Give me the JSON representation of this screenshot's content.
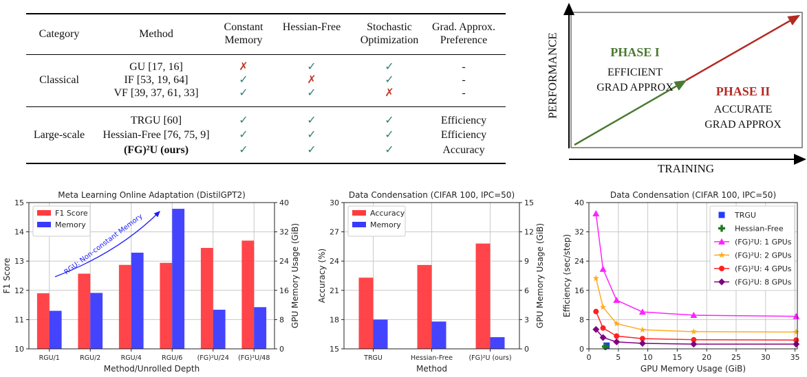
{
  "table": {
    "headers": [
      "Category",
      "Method",
      "Constant Memory",
      "Hessian-Free",
      "Stochastic Optimization",
      "Grad. Approx. Preference"
    ],
    "groups": [
      {
        "category": "Classical",
        "rows": [
          {
            "method": "GU [17, 16]",
            "cells": [
              "✗",
              "✓",
              "✓",
              "-"
            ]
          },
          {
            "method": "IF [53, 19, 64]",
            "cells": [
              "✓",
              "✗",
              "✓",
              "-"
            ]
          },
          {
            "method": "VF [39, 37, 61, 33]",
            "cells": [
              "✓",
              "✓",
              "✗",
              "-"
            ]
          }
        ]
      },
      {
        "category": "Large-scale",
        "rows": [
          {
            "method": "TRGU [60]",
            "cells": [
              "✓",
              "✓",
              "✓",
              "Efficiency"
            ]
          },
          {
            "method": "Hessian-Free [76, 75, 9]",
            "cells": [
              "✓",
              "✓",
              "✓",
              "Efficiency"
            ]
          },
          {
            "method": "(FG)²U (ours)",
            "cells": [
              "✓",
              "✓",
              "✓",
              "Accuracy"
            ]
          }
        ]
      }
    ],
    "check_color": "#2f7f74",
    "cross_color": "#c0392b"
  },
  "phase_diagram": {
    "y_axis": "PERFORMANCE",
    "x_axis": "TRAINING",
    "phase1_title": "PHASE I",
    "phase1_line1": "EFFICIENT",
    "phase1_line2": "GRAD APPROX",
    "phase2_title": "PHASE II",
    "phase2_line1": "ACCURATE",
    "phase2_line2": "GRAD APPROX",
    "phase1_color": "#4a7a32",
    "phase2_color": "#b22a22"
  },
  "chart_data": [
    {
      "type": "bar",
      "title": "Meta Learning Online Adaptation (DistilGPT2)",
      "xlabel": "Method/Unrolled Depth",
      "ylabel": "F1 Score",
      "y2label": "GPU Memory Usage (GiB)",
      "categories": [
        "RGU/1",
        "RGU/2",
        "RGU/4",
        "RGU/6",
        "(FG)²U/24",
        "(FG)²U/48"
      ],
      "series": [
        {
          "name": "F1 Score",
          "axis": "left",
          "color": "#ff3b3f",
          "values": [
            11.9,
            12.57,
            12.87,
            12.94,
            13.45,
            13.7
          ]
        },
        {
          "name": "Memory",
          "axis": "right",
          "color": "#3a3aff",
          "values": [
            10.4,
            15.3,
            26.3,
            38.3,
            10.7,
            11.4
          ]
        }
      ],
      "ylim": [
        10,
        15
      ],
      "yticks": [
        10,
        11,
        12,
        13,
        14,
        15
      ],
      "y2lim": [
        0,
        40
      ],
      "y2ticks": [
        0,
        8,
        16,
        24,
        32,
        40
      ],
      "annotation": "RGU: Non-constant Memory",
      "grid": true,
      "legend": "top-left"
    },
    {
      "type": "bar",
      "title": "Data Condensation (CIFAR 100, IPC=50)",
      "xlabel": "Method",
      "ylabel": "Accuracy (%)",
      "y2label": "GPU Memory Usage (GiB)",
      "categories": [
        "TRGU",
        "Hessian-Free",
        "(FG)²U (ours)"
      ],
      "series": [
        {
          "name": "Accuracy",
          "axis": "left",
          "color": "#ff3b3f",
          "values": [
            22.3,
            23.6,
            25.8
          ]
        },
        {
          "name": "Memory",
          "axis": "right",
          "color": "#3a3aff",
          "values": [
            3.0,
            2.8,
            1.2
          ]
        }
      ],
      "ylim": [
        15,
        30
      ],
      "yticks": [
        15,
        18,
        21,
        24,
        27,
        30
      ],
      "y2lim": [
        0,
        15
      ],
      "y2ticks": [
        0,
        3,
        6,
        9,
        12,
        15
      ],
      "grid": true,
      "legend": "top-left"
    },
    {
      "type": "line",
      "title": "Data Condensation (CIFAR 100, IPC=50)",
      "xlabel": "GPU Memory Usage (GiB)",
      "ylabel": "Efficiency (sec/step)",
      "xlim": [
        0,
        35.4
      ],
      "xticks": [
        0,
        5,
        10,
        15,
        20,
        25,
        30,
        35
      ],
      "ylim": [
        0,
        40
      ],
      "yticks": [
        0,
        8,
        16,
        24,
        32,
        40
      ],
      "points": [
        {
          "name": "TRGU",
          "color": "#1f3cff",
          "marker": "square",
          "x": 3.0,
          "y": 0.9
        },
        {
          "name": "Hessian-Free",
          "color": "#1e7a1e",
          "marker": "plus",
          "x": 2.8,
          "y": 0.6
        }
      ],
      "series": [
        {
          "name": "(FG)²U: 1 GPUs",
          "color": "#ff22ff",
          "marker": "triangle",
          "x": [
            1.2,
            2.4,
            4.7,
            9.1,
            17.8,
            35.2
          ],
          "y": [
            37,
            21.8,
            13.3,
            10.1,
            9.2,
            8.9
          ]
        },
        {
          "name": "(FG)²U: 2 GPUs",
          "color": "#ffaa22",
          "marker": "star",
          "x": [
            1.2,
            2.4,
            4.7,
            9.1,
            17.8,
            35.2
          ],
          "y": [
            19.3,
            11.4,
            6.9,
            5.2,
            4.7,
            4.6
          ]
        },
        {
          "name": "(FG)²U: 4 GPUs",
          "color": "#ff2020",
          "marker": "circle",
          "x": [
            1.2,
            2.4,
            4.7,
            9.1,
            17.8,
            35.2
          ],
          "y": [
            10.2,
            5.7,
            3.5,
            2.8,
            2.5,
            2.4
          ]
        },
        {
          "name": "(FG)²U: 8 GPUs",
          "color": "#800080",
          "marker": "diamond",
          "x": [
            1.2,
            2.4,
            4.7,
            9.1,
            17.8,
            35.2
          ],
          "y": [
            5.3,
            3.1,
            1.9,
            1.5,
            1.3,
            1.3
          ]
        }
      ],
      "grid": true,
      "legend": "top-right"
    }
  ]
}
